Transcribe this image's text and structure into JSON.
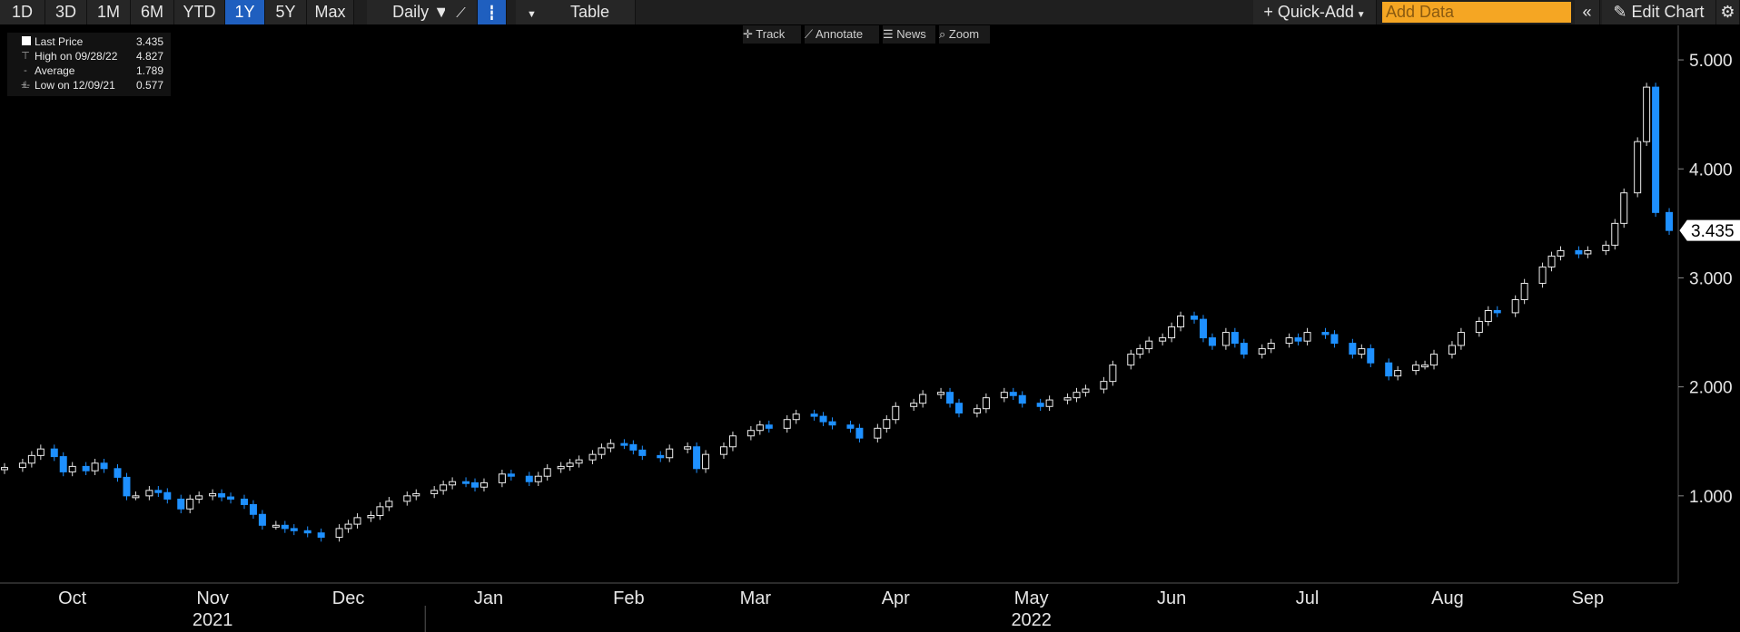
{
  "toolbar": {
    "ranges": [
      "1D",
      "3D",
      "1M",
      "6M",
      "YTD",
      "1Y",
      "5Y",
      "Max"
    ],
    "active_range": "1Y",
    "frequency": "Daily ▼",
    "table_label": "Table",
    "quick_add_label": "Quick-Add",
    "add_data_placeholder": "Add Data",
    "edit_chart_label": "Edit Chart"
  },
  "mini_toolbar": {
    "track": "Track",
    "annotate": "Annotate",
    "news": "News",
    "zoom": "Zoom"
  },
  "legend": {
    "last_price_label": "Last Price",
    "last_price_value": "3.435",
    "high_label": "High on 09/28/22",
    "high_value": "4.827",
    "average_label": "Average",
    "average_value": "1.789",
    "low_label": "Low on 12/09/21",
    "low_value": "0.577"
  },
  "colors": {
    "up": "#ffffff",
    "down": "#1e90ff",
    "background": "#000000",
    "toolbar": "#1f1f1f",
    "active": "#1f5fbf",
    "add_data": "#f5a623"
  },
  "chart_data": {
    "type": "candlestick",
    "last_price_label": "3.435",
    "y_ticks": [
      "5.000",
      "4.000",
      "3.000",
      "2.000",
      "1.000"
    ],
    "y_tick_values": [
      5,
      4,
      3,
      2,
      1
    ],
    "ylim": [
      0.2,
      5.3
    ],
    "x_start": "2021-09-29",
    "x_end": "2022-10-05",
    "month_labels": [
      {
        "label": "Oct",
        "date": "2021-10-15"
      },
      {
        "label": "Nov",
        "date": "2021-11-15"
      },
      {
        "label": "Dec",
        "date": "2021-12-15"
      },
      {
        "label": "Jan",
        "date": "2022-01-15"
      },
      {
        "label": "Feb",
        "date": "2022-02-15"
      },
      {
        "label": "Mar",
        "date": "2022-03-15"
      },
      {
        "label": "Apr",
        "date": "2022-04-15"
      },
      {
        "label": "May",
        "date": "2022-05-15"
      },
      {
        "label": "Jun",
        "date": "2022-06-15"
      },
      {
        "label": "Jul",
        "date": "2022-07-15"
      },
      {
        "label": "Aug",
        "date": "2022-08-15"
      },
      {
        "label": "Sep",
        "date": "2022-09-15"
      }
    ],
    "year_labels": [
      {
        "label": "2021",
        "date": "2021-11-15"
      },
      {
        "label": "2022",
        "date": "2022-05-15"
      }
    ],
    "year_separator": "2022-01-01",
    "closes": [
      [
        "2021-09-30",
        1.26
      ],
      [
        "2021-10-04",
        1.3
      ],
      [
        "2021-10-06",
        1.37
      ],
      [
        "2021-10-08",
        1.43
      ],
      [
        "2021-10-11",
        1.36
      ],
      [
        "2021-10-13",
        1.22
      ],
      [
        "2021-10-15",
        1.27
      ],
      [
        "2021-10-18",
        1.23
      ],
      [
        "2021-10-20",
        1.3
      ],
      [
        "2021-10-22",
        1.25
      ],
      [
        "2021-10-25",
        1.17
      ],
      [
        "2021-10-27",
        1.0
      ],
      [
        "2021-10-29",
        1.0
      ],
      [
        "2021-11-01",
        1.05
      ],
      [
        "2021-11-03",
        1.03
      ],
      [
        "2021-11-05",
        0.97
      ],
      [
        "2021-11-08",
        0.88
      ],
      [
        "2021-11-10",
        0.97
      ],
      [
        "2021-11-12",
        1.0
      ],
      [
        "2021-11-15",
        1.02
      ],
      [
        "2021-11-17",
        0.99
      ],
      [
        "2021-11-19",
        0.97
      ],
      [
        "2021-11-22",
        0.92
      ],
      [
        "2021-11-24",
        0.83
      ],
      [
        "2021-11-26",
        0.73
      ],
      [
        "2021-11-29",
        0.73
      ],
      [
        "2021-12-01",
        0.7
      ],
      [
        "2021-12-03",
        0.68
      ],
      [
        "2021-12-06",
        0.66
      ],
      [
        "2021-12-09",
        0.62
      ],
      [
        "2021-12-13",
        0.7
      ],
      [
        "2021-12-15",
        0.74
      ],
      [
        "2021-12-17",
        0.8
      ],
      [
        "2021-12-20",
        0.82
      ],
      [
        "2021-12-22",
        0.9
      ],
      [
        "2021-12-24",
        0.95
      ],
      [
        "2021-12-28",
        1.0
      ],
      [
        "2021-12-30",
        1.02
      ],
      [
        "2022-01-03",
        1.05
      ],
      [
        "2022-01-05",
        1.1
      ],
      [
        "2022-01-07",
        1.13
      ],
      [
        "2022-01-10",
        1.12
      ],
      [
        "2022-01-12",
        1.08
      ],
      [
        "2022-01-14",
        1.12
      ],
      [
        "2022-01-18",
        1.2
      ],
      [
        "2022-01-20",
        1.18
      ],
      [
        "2022-01-24",
        1.13
      ],
      [
        "2022-01-26",
        1.18
      ],
      [
        "2022-01-28",
        1.25
      ],
      [
        "2022-01-31",
        1.27
      ],
      [
        "2022-02-02",
        1.3
      ],
      [
        "2022-02-04",
        1.33
      ],
      [
        "2022-02-07",
        1.38
      ],
      [
        "2022-02-09",
        1.44
      ],
      [
        "2022-02-11",
        1.48
      ],
      [
        "2022-02-14",
        1.47
      ],
      [
        "2022-02-16",
        1.42
      ],
      [
        "2022-02-18",
        1.37
      ],
      [
        "2022-02-22",
        1.35
      ],
      [
        "2022-02-24",
        1.43
      ],
      [
        "2022-02-28",
        1.45
      ],
      [
        "2022-03-02",
        1.25
      ],
      [
        "2022-03-04",
        1.38
      ],
      [
        "2022-03-08",
        1.45
      ],
      [
        "2022-03-10",
        1.55
      ],
      [
        "2022-03-14",
        1.6
      ],
      [
        "2022-03-16",
        1.65
      ],
      [
        "2022-03-18",
        1.62
      ],
      [
        "2022-03-22",
        1.7
      ],
      [
        "2022-03-24",
        1.75
      ],
      [
        "2022-03-28",
        1.73
      ],
      [
        "2022-03-30",
        1.68
      ],
      [
        "2022-04-01",
        1.65
      ],
      [
        "2022-04-05",
        1.62
      ],
      [
        "2022-04-07",
        1.53
      ],
      [
        "2022-04-11",
        1.62
      ],
      [
        "2022-04-13",
        1.7
      ],
      [
        "2022-04-15",
        1.82
      ],
      [
        "2022-04-19",
        1.85
      ],
      [
        "2022-04-21",
        1.93
      ],
      [
        "2022-04-25",
        1.95
      ],
      [
        "2022-04-27",
        1.85
      ],
      [
        "2022-04-29",
        1.76
      ],
      [
        "2022-05-03",
        1.8
      ],
      [
        "2022-05-05",
        1.9
      ],
      [
        "2022-05-09",
        1.95
      ],
      [
        "2022-05-11",
        1.92
      ],
      [
        "2022-05-13",
        1.85
      ],
      [
        "2022-05-17",
        1.82
      ],
      [
        "2022-05-19",
        1.88
      ],
      [
        "2022-05-23",
        1.9
      ],
      [
        "2022-05-25",
        1.95
      ],
      [
        "2022-05-27",
        1.98
      ],
      [
        "2022-05-31",
        2.05
      ],
      [
        "2022-06-02",
        2.2
      ],
      [
        "2022-06-06",
        2.3
      ],
      [
        "2022-06-08",
        2.35
      ],
      [
        "2022-06-10",
        2.42
      ],
      [
        "2022-06-13",
        2.45
      ],
      [
        "2022-06-15",
        2.55
      ],
      [
        "2022-06-17",
        2.65
      ],
      [
        "2022-06-20",
        2.62
      ],
      [
        "2022-06-22",
        2.45
      ],
      [
        "2022-06-24",
        2.38
      ],
      [
        "2022-06-27",
        2.5
      ],
      [
        "2022-06-29",
        2.4
      ],
      [
        "2022-07-01",
        2.3
      ],
      [
        "2022-07-05",
        2.35
      ],
      [
        "2022-07-07",
        2.4
      ],
      [
        "2022-07-11",
        2.45
      ],
      [
        "2022-07-13",
        2.42
      ],
      [
        "2022-07-15",
        2.5
      ],
      [
        "2022-07-19",
        2.48
      ],
      [
        "2022-07-21",
        2.4
      ],
      [
        "2022-07-25",
        2.3
      ],
      [
        "2022-07-27",
        2.35
      ],
      [
        "2022-07-29",
        2.22
      ],
      [
        "2022-08-02",
        2.1
      ],
      [
        "2022-08-04",
        2.15
      ],
      [
        "2022-08-08",
        2.2
      ],
      [
        "2022-08-10",
        2.2
      ],
      [
        "2022-08-12",
        2.3
      ],
      [
        "2022-08-16",
        2.38
      ],
      [
        "2022-08-18",
        2.5
      ],
      [
        "2022-08-22",
        2.6
      ],
      [
        "2022-08-24",
        2.7
      ],
      [
        "2022-08-26",
        2.68
      ],
      [
        "2022-08-30",
        2.8
      ],
      [
        "2022-09-01",
        2.95
      ],
      [
        "2022-09-05",
        3.1
      ],
      [
        "2022-09-07",
        3.2
      ],
      [
        "2022-09-09",
        3.25
      ],
      [
        "2022-09-13",
        3.22
      ],
      [
        "2022-09-15",
        3.25
      ],
      [
        "2022-09-19",
        3.3
      ],
      [
        "2022-09-21",
        3.5
      ],
      [
        "2022-09-23",
        3.78
      ],
      [
        "2022-09-26",
        4.25
      ],
      [
        "2022-09-28",
        4.75
      ],
      [
        "2022-09-30",
        3.6
      ],
      [
        "2022-10-03",
        3.435
      ]
    ]
  }
}
